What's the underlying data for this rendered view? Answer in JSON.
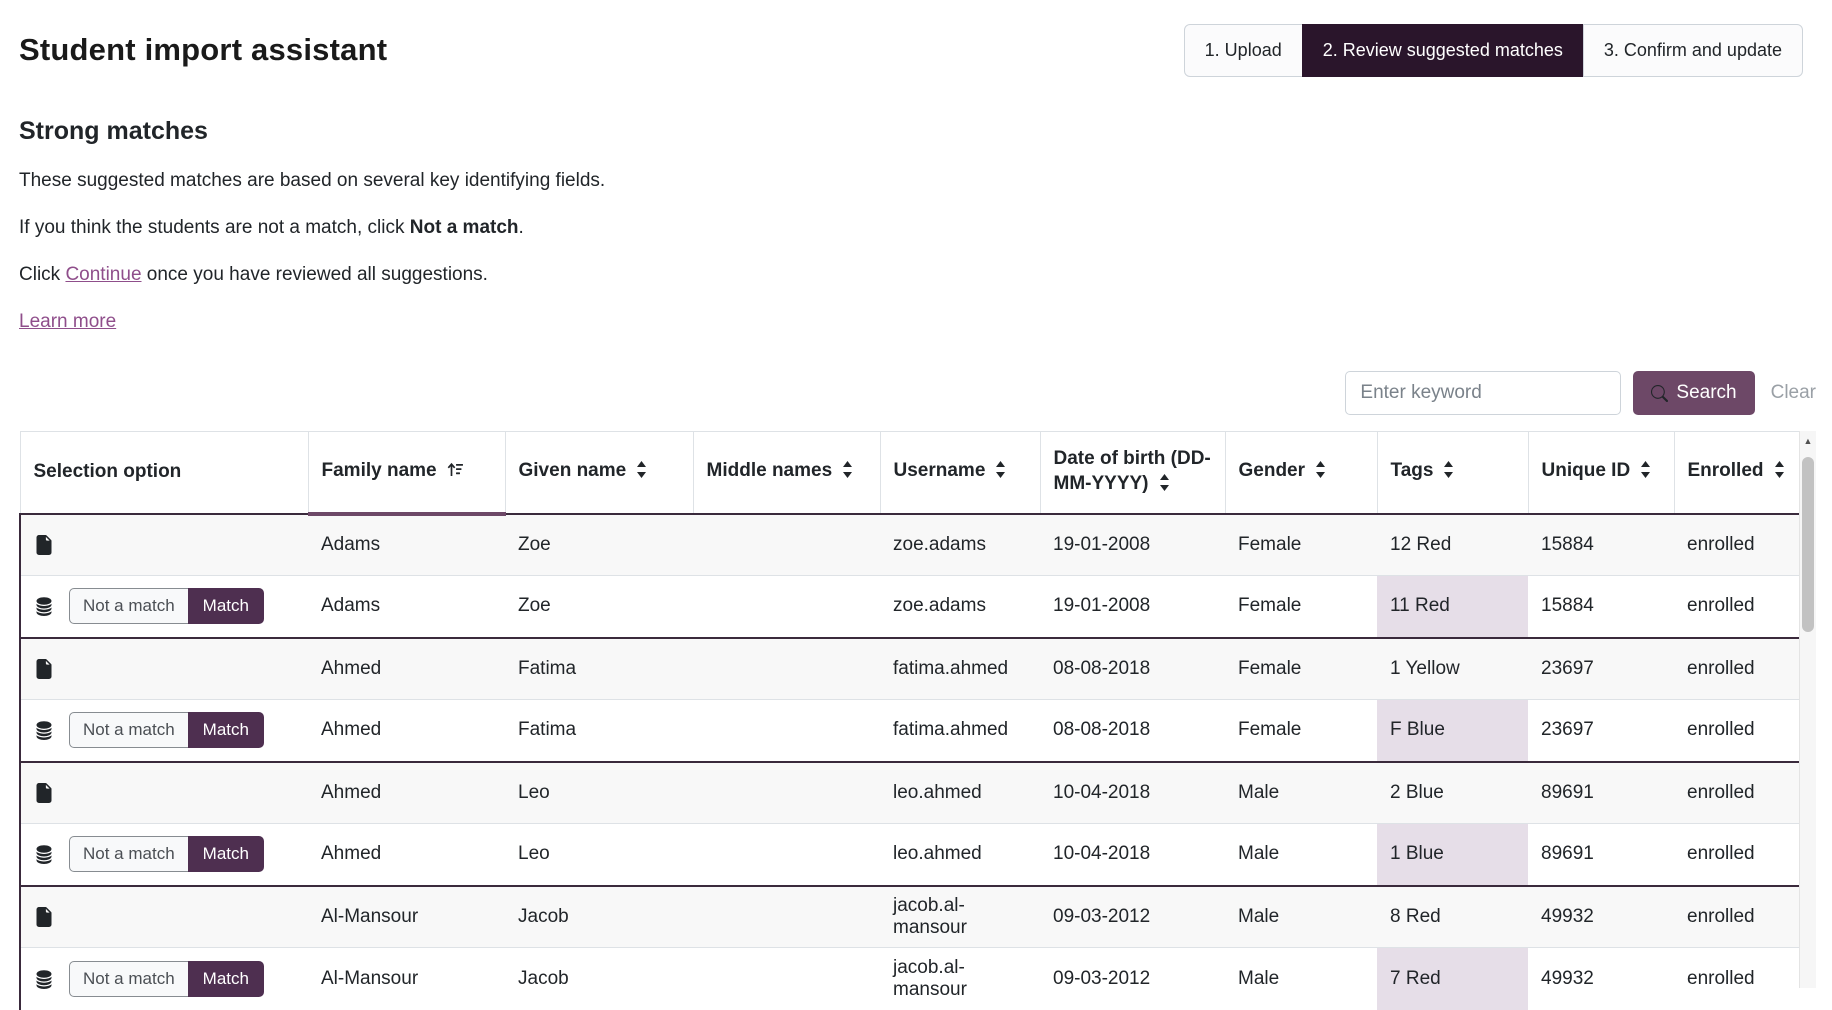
{
  "page": {
    "title": "Student import assistant",
    "section_heading": "Strong matches"
  },
  "steps": [
    {
      "label": "1. Upload",
      "active": false
    },
    {
      "label": "2. Review suggested matches",
      "active": true
    },
    {
      "label": "3. Confirm and update",
      "active": false
    }
  ],
  "intro": {
    "line1": "These suggested matches are based on several key identifying fields.",
    "line2_pre": "If you think the students are not a match, click ",
    "line2_bold": "Not a match",
    "line2_post": ".",
    "line3_pre": "Click ",
    "line3_link": "Continue",
    "line3_post": " once you have reviewed all suggestions.",
    "learn_more": "Learn more"
  },
  "search": {
    "placeholder": "Enter keyword",
    "button_label": "Search",
    "clear_label": "Clear"
  },
  "table": {
    "columns": [
      {
        "label": "Selection option",
        "sortable": false,
        "sorted": false
      },
      {
        "label": "Family name",
        "sortable": true,
        "sorted": true
      },
      {
        "label": "Given name",
        "sortable": true,
        "sorted": false
      },
      {
        "label": "Middle names",
        "sortable": true,
        "sorted": false
      },
      {
        "label": "Username",
        "sortable": true,
        "sorted": false
      },
      {
        "label": "Date of birth (DD-MM-YYYY)",
        "sortable": true,
        "sorted": false
      },
      {
        "label": "Gender",
        "sortable": true,
        "sorted": false
      },
      {
        "label": "Tags",
        "sortable": true,
        "sorted": false
      },
      {
        "label": "Unique ID",
        "sortable": true,
        "sorted": false
      },
      {
        "label": "Enrolled",
        "sortable": true,
        "sorted": false
      }
    ],
    "buttons": {
      "not_a_match": "Not a match",
      "match": "Match"
    },
    "groups": [
      {
        "import_row": {
          "family": "Adams",
          "given": "Zoe",
          "middle": "",
          "username": "zoe.adams",
          "dob": "19-01-2008",
          "gender": "Female",
          "tags": "12 Red",
          "unique_id": "15884",
          "enrolled": "enrolled"
        },
        "existing_row": {
          "family": "Adams",
          "given": "Zoe",
          "middle": "",
          "username": "zoe.adams",
          "dob": "19-01-2008",
          "gender": "Female",
          "tags": "11 Red",
          "tags_highlight": true,
          "unique_id": "15884",
          "enrolled": "enrolled"
        }
      },
      {
        "import_row": {
          "family": "Ahmed",
          "given": "Fatima",
          "middle": "",
          "username": "fatima.ahmed",
          "dob": "08-08-2018",
          "gender": "Female",
          "tags": "1 Yellow",
          "unique_id": "23697",
          "enrolled": "enrolled"
        },
        "existing_row": {
          "family": "Ahmed",
          "given": "Fatima",
          "middle": "",
          "username": "fatima.ahmed",
          "dob": "08-08-2018",
          "gender": "Female",
          "tags": "F Blue",
          "tags_highlight": true,
          "unique_id": "23697",
          "enrolled": "enrolled"
        }
      },
      {
        "import_row": {
          "family": "Ahmed",
          "given": "Leo",
          "middle": "",
          "username": "leo.ahmed",
          "dob": "10-04-2018",
          "gender": "Male",
          "tags": "2 Blue",
          "unique_id": "89691",
          "enrolled": "enrolled"
        },
        "existing_row": {
          "family": "Ahmed",
          "given": "Leo",
          "middle": "",
          "username": "leo.ahmed",
          "dob": "10-04-2018",
          "gender": "Male",
          "tags": "1 Blue",
          "tags_highlight": true,
          "unique_id": "89691",
          "enrolled": "enrolled"
        }
      },
      {
        "import_row": {
          "family": "Al-Mansour",
          "given": "Jacob",
          "middle": "",
          "username": "jacob.al-mansour",
          "dob": "09-03-2012",
          "gender": "Male",
          "tags": "8 Red",
          "unique_id": "49932",
          "enrolled": "enrolled"
        },
        "existing_row": {
          "family": "Al-Mansour",
          "given": "Jacob",
          "middle": "",
          "username": "jacob.al-mansour",
          "dob": "09-03-2012",
          "gender": "Male",
          "tags": "7 Red",
          "tags_highlight": true,
          "unique_id": "49932",
          "enrolled": "enrolled"
        }
      }
    ]
  },
  "colors": {
    "accent": "#6d4867",
    "step_active_bg": "#2a152b",
    "match_button_bg": "#4e2f50",
    "link": "#8f4e8b",
    "tag_highlight_bg": "#e6dee8",
    "group_border": "#3a2a3c"
  }
}
